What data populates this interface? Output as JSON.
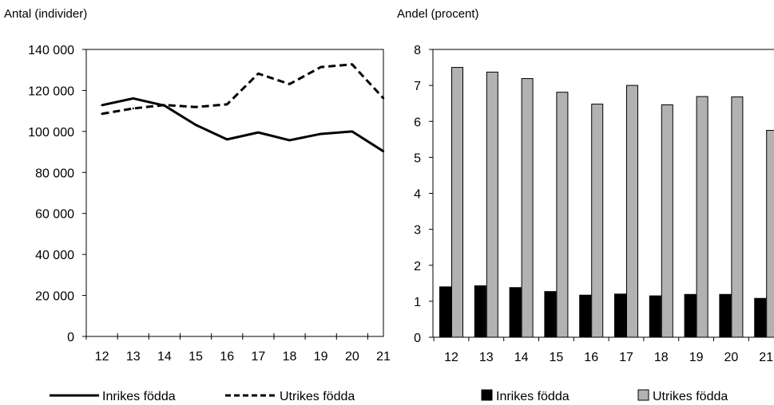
{
  "chart_data": [
    {
      "type": "line",
      "unit_label": "Antal (individer)",
      "title": "",
      "xlabel": "",
      "ylabel": "",
      "x": [
        "12",
        "13",
        "14",
        "15",
        "16",
        "17",
        "18",
        "19",
        "20",
        "21"
      ],
      "ylim": [
        0,
        140000
      ],
      "yticks": [
        0,
        20000,
        40000,
        60000,
        80000,
        100000,
        120000,
        140000
      ],
      "ytick_labels": [
        "0",
        "20 000",
        "40 000",
        "60 000",
        "80 000",
        "100 000",
        "120 000",
        "140 000"
      ],
      "grid": false,
      "legend_position": "bottom",
      "series": [
        {
          "name": "Inrikes födda",
          "style": "solid",
          "color": "#000000",
          "values": [
            112800,
            116100,
            112600,
            103200,
            96100,
            99500,
            95700,
            98800,
            100000,
            90300
          ]
        },
        {
          "name": "Utrikes födda",
          "style": "dashed",
          "color": "#000000",
          "values": [
            108600,
            111200,
            112900,
            111900,
            113200,
            128200,
            123100,
            131400,
            132700,
            116200
          ]
        }
      ]
    },
    {
      "type": "bar",
      "unit_label": "Andel (procent)",
      "title": "",
      "xlabel": "",
      "ylabel": "",
      "categories": [
        "12",
        "13",
        "14",
        "15",
        "16",
        "17",
        "18",
        "19",
        "20",
        "21"
      ],
      "ylim": [
        0,
        8
      ],
      "yticks": [
        0,
        1,
        2,
        3,
        4,
        5,
        6,
        7,
        8
      ],
      "ytick_labels": [
        "0",
        "1",
        "2",
        "3",
        "4",
        "5",
        "6",
        "7",
        "8"
      ],
      "grid": false,
      "legend_position": "bottom",
      "series": [
        {
          "name": "Inrikes födda",
          "color": "#000000",
          "values": [
            1.4,
            1.43,
            1.38,
            1.27,
            1.17,
            1.2,
            1.15,
            1.19,
            1.19,
            1.08
          ]
        },
        {
          "name": "Utrikes födda",
          "color": "#b2b2b2",
          "values": [
            7.5,
            7.37,
            7.19,
            6.81,
            6.48,
            7.0,
            6.46,
            6.69,
            6.68,
            5.75
          ]
        }
      ]
    }
  ]
}
